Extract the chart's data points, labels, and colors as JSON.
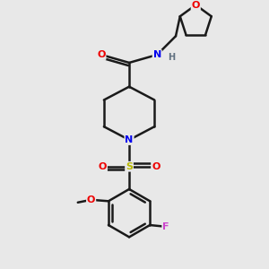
{
  "background_color": "#e8e8e8",
  "atom_colors": {
    "C": "#1a1a1a",
    "N": "#0000ee",
    "O": "#ee0000",
    "S": "#b8b800",
    "F": "#cc44cc",
    "H": "#607080"
  },
  "bond_color": "#1a1a1a",
  "bond_width": 1.8,
  "figsize": [
    3.0,
    3.0
  ],
  "dpi": 100,
  "xlim": [
    0,
    10
  ],
  "ylim": [
    0,
    10
  ]
}
